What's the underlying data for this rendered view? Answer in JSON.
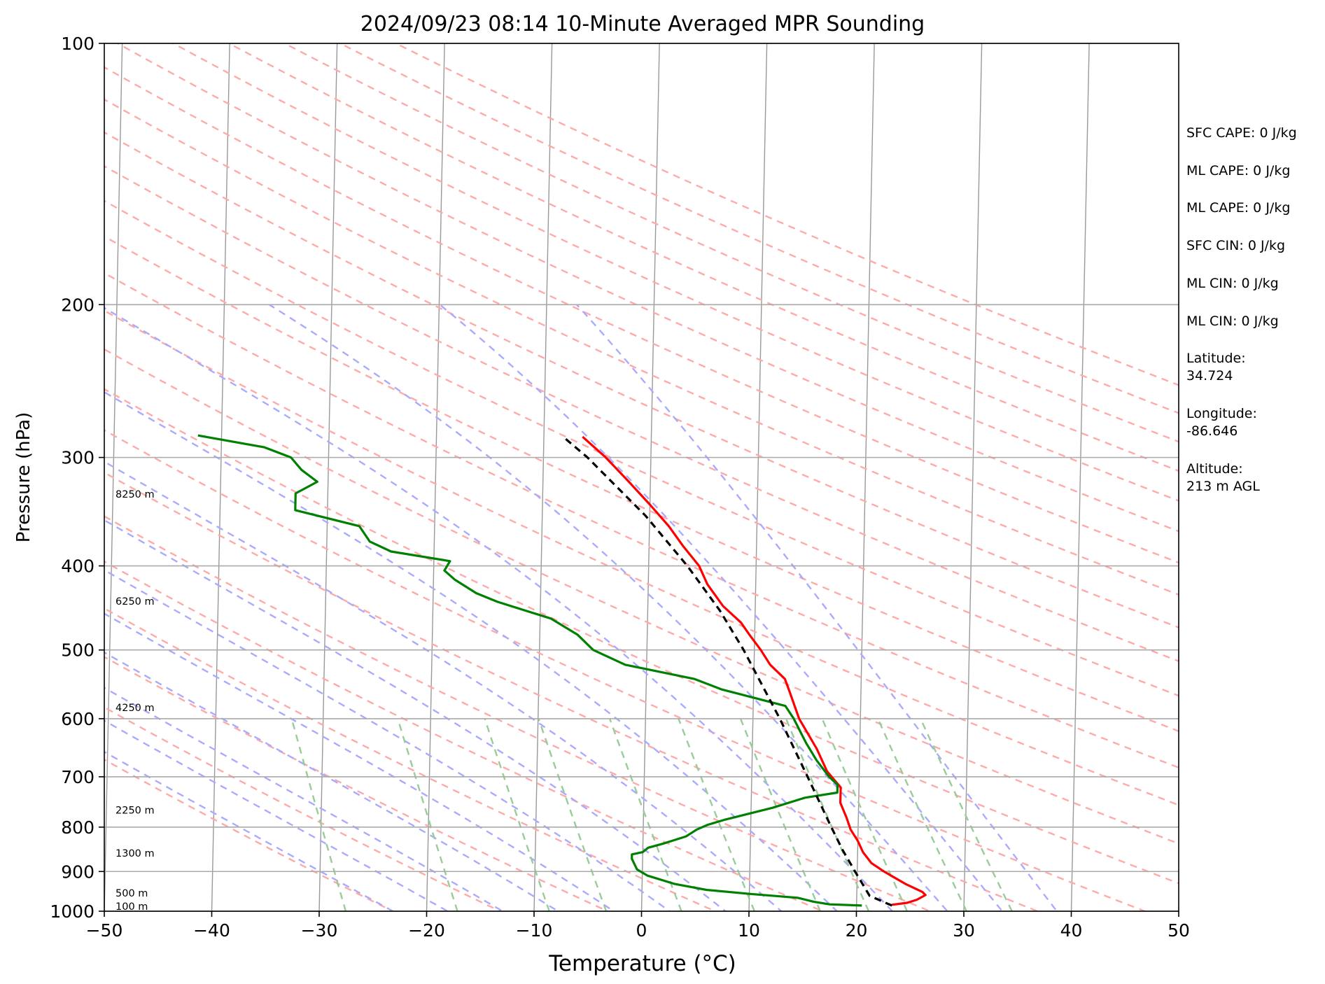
{
  "chart_data": {
    "type": "skew-t",
    "title": "2024/09/23 08:14 10-Minute Averaged MPR Sounding",
    "xlabel": "Temperature (°C)",
    "ylabel": "Pressure (hPa)",
    "xlim": [
      -50,
      50
    ],
    "ylim": [
      1000,
      100
    ],
    "x_scale": "linear",
    "y_scale": "log",
    "x_ticks": [
      -50,
      -40,
      -30,
      -20,
      -10,
      0,
      10,
      20,
      30,
      40,
      50
    ],
    "x_tick_labels": [
      "−50",
      "−40",
      "−30",
      "−20",
      "−10",
      "0",
      "10",
      "20",
      "30",
      "40",
      "50"
    ],
    "y_ticks": [
      1000,
      900,
      800,
      700,
      600,
      500,
      400,
      300,
      200,
      100
    ],
    "y_tick_labels": [
      "1000",
      "900",
      "800",
      "700",
      "600",
      "500",
      "400",
      "300",
      "200",
      "100"
    ],
    "grid": true,
    "colors": {
      "temperature": "#ff0000",
      "dewpoint": "#008000",
      "parcel": "#000000",
      "dry_adiabats": "#ffaaaa",
      "moist_adiabats": "#aaaaff",
      "mixing_ratio": "#99cc99",
      "isotherms": "#999999",
      "grid": "#aaaaaa"
    },
    "series": [
      {
        "role": "temperature",
        "points": [
          [
            983,
            23.3
          ],
          [
            978,
            24.7
          ],
          [
            970,
            25.6
          ],
          [
            958,
            26.4
          ],
          [
            950,
            26.1
          ],
          [
            930,
            24.5
          ],
          [
            900,
            22.5
          ],
          [
            880,
            21.3
          ],
          [
            855,
            20.5
          ],
          [
            830,
            20.0
          ],
          [
            805,
            19.3
          ],
          [
            780,
            18.9
          ],
          [
            750,
            18.3
          ],
          [
            720,
            18.3
          ],
          [
            690,
            17.0
          ],
          [
            650,
            16.0
          ],
          [
            600,
            14.3
          ],
          [
            560,
            13.4
          ],
          [
            540,
            12.9
          ],
          [
            520,
            11.5
          ],
          [
            500,
            10.6
          ],
          [
            480,
            9.5
          ],
          [
            465,
            8.7
          ],
          [
            445,
            7.0
          ],
          [
            420,
            5.5
          ],
          [
            400,
            4.7
          ],
          [
            380,
            3.2
          ],
          [
            360,
            1.8
          ],
          [
            340,
            0.0
          ],
          [
            320,
            -2.0
          ],
          [
            300,
            -4.2
          ],
          [
            284,
            -6.4
          ]
        ]
      },
      {
        "role": "dewpoint",
        "points": [
          [
            985,
            20.5
          ],
          [
            982,
            17.5
          ],
          [
            975,
            16.0
          ],
          [
            965,
            14.5
          ],
          [
            955,
            10.0
          ],
          [
            945,
            6.0
          ],
          [
            930,
            3.0
          ],
          [
            910,
            0.5
          ],
          [
            895,
            -0.5
          ],
          [
            870,
            -1.0
          ],
          [
            860,
            -1.0
          ],
          [
            855,
            0.0
          ],
          [
            845,
            0.5
          ],
          [
            835,
            2.0
          ],
          [
            820,
            4.0
          ],
          [
            805,
            5.0
          ],
          [
            795,
            6.0
          ],
          [
            785,
            7.5
          ],
          [
            760,
            12.0
          ],
          [
            740,
            15.0
          ],
          [
            730,
            18.0
          ],
          [
            715,
            18.0
          ],
          [
            700,
            17.2
          ],
          [
            670,
            16.0
          ],
          [
            640,
            15.0
          ],
          [
            600,
            13.8
          ],
          [
            580,
            13.0
          ],
          [
            555,
            7.0
          ],
          [
            540,
            4.5
          ],
          [
            520,
            -2.0
          ],
          [
            500,
            -5.0
          ],
          [
            480,
            -6.5
          ],
          [
            460,
            -9.0
          ],
          [
            440,
            -14.0
          ],
          [
            430,
            -16.0
          ],
          [
            415,
            -18.0
          ],
          [
            405,
            -19.0
          ],
          [
            395,
            -18.5
          ],
          [
            385,
            -24.0
          ],
          [
            375,
            -26.0
          ],
          [
            360,
            -27.0
          ],
          [
            345,
            -33.0
          ],
          [
            330,
            -33.0
          ],
          [
            320,
            -31.0
          ],
          [
            310,
            -32.5
          ],
          [
            300,
            -33.5
          ],
          [
            292,
            -36.0
          ],
          [
            283,
            -42.2
          ]
        ]
      },
      {
        "role": "parcel",
        "points": [
          [
            985,
            23.3
          ],
          [
            960,
            21.2
          ],
          [
            900,
            19.8
          ],
          [
            850,
            18.6
          ],
          [
            800,
            17.5
          ],
          [
            700,
            15.2
          ],
          [
            600,
            12.5
          ],
          [
            500,
            9.0
          ],
          [
            450,
            6.7
          ],
          [
            400,
            3.6
          ],
          [
            350,
            -0.4
          ],
          [
            300,
            -5.9
          ],
          [
            284,
            -8.2
          ]
        ]
      }
    ],
    "height_labels": [
      "8250 m",
      "6250 m",
      "4250 m",
      "2250 m",
      "1300 m",
      "500 m",
      "100 m"
    ],
    "height_label_pressures": [
      335,
      445,
      590,
      775,
      868,
      965,
      1000
    ],
    "info": [
      "SFC CAPE: 0 J/kg",
      "ML CAPE: 0 J/kg",
      "ML CAPE: 0 J/kg",
      "SFC CIN: 0 J/kg",
      "ML CIN: 0 J/kg",
      "ML CIN: 0 J/kg",
      "Latitude:\n34.724",
      "Longitude:\n-86.646",
      "Altitude:\n213 m AGL"
    ]
  }
}
